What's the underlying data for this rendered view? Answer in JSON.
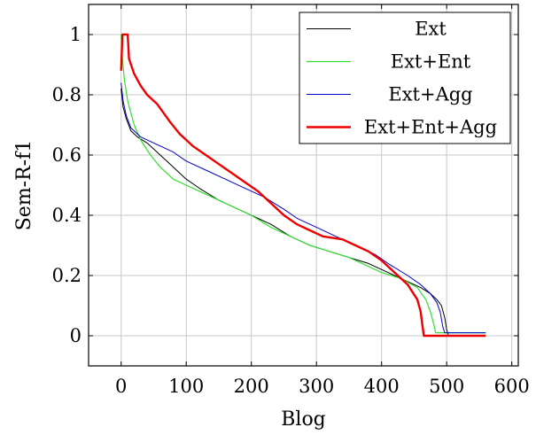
{
  "chart_data": {
    "type": "line",
    "title": "",
    "xlabel": "Blog",
    "ylabel": "Sem-R-f1",
    "xlim": [
      -50,
      610
    ],
    "ylim": [
      -0.1,
      1.1
    ],
    "xticks": [
      0,
      100,
      200,
      300,
      400,
      500,
      600
    ],
    "yticks": [
      0,
      0.2,
      0.4,
      0.6,
      0.8,
      1
    ],
    "xtick_labels": [
      "0",
      "100",
      "200",
      "300",
      "400",
      "500",
      "600"
    ],
    "ytick_labels": [
      "0",
      "0.2",
      "0.4",
      "0.6",
      "0.8",
      "1"
    ],
    "grid": true,
    "legend_position": "top-right",
    "series": [
      {
        "name": "Ext",
        "color": "#000000",
        "points": [
          [
            0,
            0.82
          ],
          [
            3,
            0.76
          ],
          [
            8,
            0.72
          ],
          [
            15,
            0.68
          ],
          [
            25,
            0.66
          ],
          [
            40,
            0.64
          ],
          [
            55,
            0.61
          ],
          [
            70,
            0.58
          ],
          [
            85,
            0.55
          ],
          [
            100,
            0.52
          ],
          [
            120,
            0.49
          ],
          [
            150,
            0.45
          ],
          [
            180,
            0.42
          ],
          [
            200,
            0.4
          ],
          [
            230,
            0.37
          ],
          [
            260,
            0.33
          ],
          [
            290,
            0.3
          ],
          [
            320,
            0.28
          ],
          [
            350,
            0.26
          ],
          [
            380,
            0.24
          ],
          [
            400,
            0.22
          ],
          [
            420,
            0.2
          ],
          [
            440,
            0.18
          ],
          [
            460,
            0.16
          ],
          [
            475,
            0.14
          ],
          [
            485,
            0.12
          ],
          [
            492,
            0.1
          ],
          [
            497,
            0.06
          ],
          [
            500,
            0.02
          ],
          [
            503,
            0.0
          ],
          [
            560,
            0.0
          ]
        ]
      },
      {
        "name": "Ext+Ent",
        "color": "#33dd33",
        "points": [
          [
            0,
            1.0
          ],
          [
            2,
            0.92
          ],
          [
            5,
            0.85
          ],
          [
            10,
            0.78
          ],
          [
            20,
            0.7
          ],
          [
            30,
            0.65
          ],
          [
            45,
            0.6
          ],
          [
            60,
            0.56
          ],
          [
            80,
            0.52
          ],
          [
            100,
            0.5
          ],
          [
            130,
            0.47
          ],
          [
            160,
            0.44
          ],
          [
            200,
            0.4
          ],
          [
            230,
            0.36
          ],
          [
            260,
            0.33
          ],
          [
            290,
            0.3
          ],
          [
            320,
            0.28
          ],
          [
            350,
            0.26
          ],
          [
            380,
            0.23
          ],
          [
            400,
            0.21
          ],
          [
            430,
            0.19
          ],
          [
            455,
            0.16
          ],
          [
            468,
            0.12
          ],
          [
            475,
            0.08
          ],
          [
            480,
            0.04
          ],
          [
            483,
            0.01
          ],
          [
            560,
            0.01
          ]
        ]
      },
      {
        "name": "Ext+Agg",
        "color": "#0000cc",
        "points": [
          [
            0,
            0.84
          ],
          [
            3,
            0.78
          ],
          [
            8,
            0.73
          ],
          [
            15,
            0.69
          ],
          [
            30,
            0.66
          ],
          [
            50,
            0.64
          ],
          [
            80,
            0.61
          ],
          [
            100,
            0.58
          ],
          [
            130,
            0.55
          ],
          [
            160,
            0.52
          ],
          [
            190,
            0.49
          ],
          [
            220,
            0.46
          ],
          [
            250,
            0.42
          ],
          [
            270,
            0.39
          ],
          [
            300,
            0.36
          ],
          [
            330,
            0.33
          ],
          [
            360,
            0.3
          ],
          [
            390,
            0.27
          ],
          [
            410,
            0.24
          ],
          [
            440,
            0.2
          ],
          [
            460,
            0.17
          ],
          [
            475,
            0.14
          ],
          [
            485,
            0.11
          ],
          [
            490,
            0.08
          ],
          [
            494,
            0.03
          ],
          [
            497,
            0.01
          ],
          [
            560,
            0.01
          ]
        ]
      },
      {
        "name": "Ext+Ent+Agg",
        "color": "#ee0000",
        "points": [
          [
            0,
            0.88
          ],
          [
            2,
            1.0
          ],
          [
            10,
            1.0
          ],
          [
            12,
            0.92
          ],
          [
            20,
            0.87
          ],
          [
            30,
            0.83
          ],
          [
            40,
            0.8
          ],
          [
            55,
            0.77
          ],
          [
            75,
            0.71
          ],
          [
            90,
            0.67
          ],
          [
            110,
            0.63
          ],
          [
            130,
            0.6
          ],
          [
            150,
            0.57
          ],
          [
            170,
            0.54
          ],
          [
            190,
            0.51
          ],
          [
            210,
            0.48
          ],
          [
            230,
            0.44
          ],
          [
            250,
            0.4
          ],
          [
            270,
            0.37
          ],
          [
            290,
            0.35
          ],
          [
            310,
            0.33
          ],
          [
            340,
            0.32
          ],
          [
            360,
            0.3
          ],
          [
            380,
            0.28
          ],
          [
            400,
            0.25
          ],
          [
            420,
            0.21
          ],
          [
            440,
            0.17
          ],
          [
            455,
            0.12
          ],
          [
            460,
            0.08
          ],
          [
            463,
            0.03
          ],
          [
            465,
            0.0
          ],
          [
            560,
            0.0
          ]
        ]
      }
    ]
  }
}
